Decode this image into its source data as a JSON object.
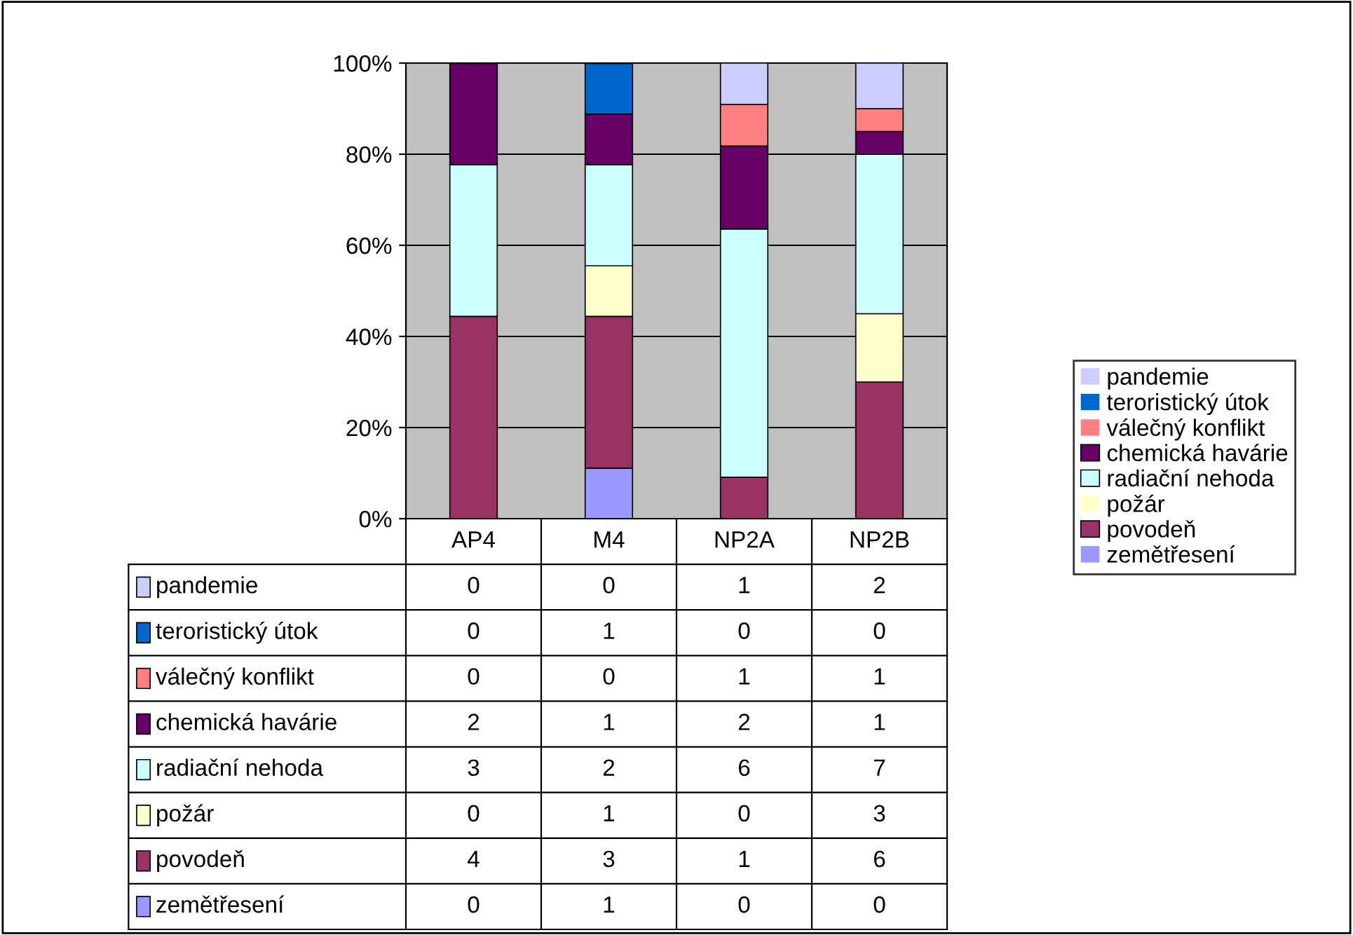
{
  "chart_data": {
    "type": "bar",
    "stacked": true,
    "categories": [
      "AP4",
      "M4",
      "NP2A",
      "NP2B"
    ],
    "series": [
      {
        "name": "zemětřesení",
        "color": "#9999ff",
        "values": [
          0,
          11.1,
          0,
          0
        ]
      },
      {
        "name": "povodeň",
        "color": "#993366",
        "values": [
          44.4,
          33.3,
          9.1,
          30
        ]
      },
      {
        "name": "požár",
        "color": "#ffffcc",
        "values": [
          0,
          11.1,
          0,
          15
        ]
      },
      {
        "name": "radiační nehoda",
        "color": "#ccffff",
        "values": [
          33.3,
          22.2,
          54.5,
          35
        ]
      },
      {
        "name": "chemická havárie",
        "color": "#660066",
        "values": [
          22.2,
          11.1,
          18.2,
          5
        ]
      },
      {
        "name": "válečný konflikt",
        "color": "#ff8080",
        "values": [
          0,
          0,
          9.1,
          5
        ]
      },
      {
        "name": "teroristický útok",
        "color": "#0066cc",
        "values": [
          0,
          11.1,
          0,
          0
        ]
      },
      {
        "name": "pandemie",
        "color": "#ccccff",
        "values": [
          0,
          0,
          9.1,
          10
        ]
      }
    ],
    "annotations": [
      "0",
      "0",
      "1",
      "2",
      "0",
      "1",
      "0",
      "0",
      "0",
      "0",
      "1",
      "1",
      "2",
      "1",
      "2",
      "1",
      "3",
      "2",
      "6",
      "7",
      "0",
      "1",
      "0",
      "3",
      "4",
      "3",
      "1",
      "6",
      "0",
      "1",
      "0",
      "0"
    ],
    "ylim": [
      0,
      100
    ],
    "yticks": [
      {
        "value": 0,
        "label": "0%"
      },
      {
        "value": 20,
        "label": "20%"
      },
      {
        "value": 40,
        "label": "40%"
      },
      {
        "value": 60,
        "label": "60%"
      },
      {
        "value": 80,
        "label": "80%"
      },
      {
        "value": 100,
        "label": "100%"
      }
    ],
    "grid": "y",
    "legend": "right"
  }
}
